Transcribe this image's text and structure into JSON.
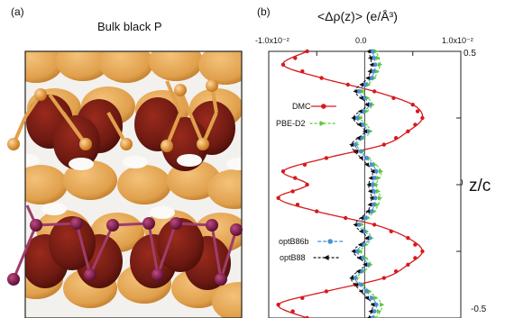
{
  "panel_a": {
    "label": "(a)",
    "title": "Bulk black P"
  },
  "panel_b": {
    "label": "(b)",
    "title": "<Δρ(z)>  (e/Å³)",
    "right_axis_label": "z/c"
  },
  "colors": {
    "density_dark": "#6e1a12",
    "density_light": "#e0a04c",
    "atom_gold": "#e39a2e",
    "atom_purple": "#7a1f4a",
    "dmc": "#d7191c",
    "pbe": "#5ac83c",
    "optb86b": "#4a8fd8",
    "optb88": "#111111"
  },
  "chart_data": {
    "type": "line",
    "orientation": "vertical-profile",
    "xlabel": "<Δρ(z)>  (e/Å³)",
    "ylabel": "z/c",
    "xlim": [
      -0.01,
      0.01
    ],
    "ylim": [
      -0.5,
      0.5
    ],
    "x_ticks": [
      "-1.0x10⁻²",
      "0.0",
      "1.0x10⁻²"
    ],
    "y_ticks": [
      "0.5",
      "0",
      "-0.5"
    ],
    "z": [
      -0.5,
      -0.45,
      -0.4,
      -0.35,
      -0.3,
      -0.25,
      -0.2,
      -0.15,
      -0.1,
      -0.05,
      0.0,
      0.05,
      0.1,
      0.15,
      0.2,
      0.25,
      0.3,
      0.35,
      0.4,
      0.45,
      0.5
    ],
    "series": [
      {
        "name": "DMC",
        "marker": "circle",
        "values": [
          -0.006,
          -0.009,
          -0.004,
          0.002,
          0.0045,
          0.006,
          0.0045,
          0.001,
          -0.005,
          -0.009,
          -0.006,
          -0.0085,
          -0.004,
          0.002,
          0.0045,
          0.006,
          0.005,
          0.001,
          -0.0045,
          -0.0085,
          -0.006
        ]
      },
      {
        "name": "PBE-D2",
        "marker": "triangle-right",
        "values": [
          0.0012,
          0.0018,
          0.0005,
          -0.0008,
          0.0006,
          -0.0004,
          0.0007,
          -0.0003,
          0.001,
          0.0016,
          0.0012,
          0.0017,
          0.0004,
          -0.0008,
          0.0006,
          -0.0004,
          0.0008,
          -0.0002,
          0.001,
          0.0016,
          0.0012
        ]
      },
      {
        "name": "optB86b",
        "marker": "circle-dashed",
        "values": [
          0.0008,
          0.0012,
          0.0002,
          -0.001,
          0.0003,
          -0.0008,
          0.0005,
          -0.0006,
          0.0007,
          0.0011,
          0.0008,
          0.0012,
          0.0002,
          -0.001,
          0.0003,
          -0.0008,
          0.0005,
          -0.0006,
          0.0007,
          0.0011,
          0.0008
        ]
      },
      {
        "name": "optB88",
        "marker": "triangle-left",
        "values": [
          0.0004,
          0.0008,
          -0.0004,
          -0.0014,
          0.0,
          -0.0012,
          0.0002,
          -0.001,
          0.0003,
          0.0007,
          0.0004,
          0.0008,
          -0.0004,
          -0.0014,
          0.0,
          -0.0012,
          0.0002,
          -0.001,
          0.0003,
          0.0007,
          0.0004
        ]
      }
    ]
  }
}
